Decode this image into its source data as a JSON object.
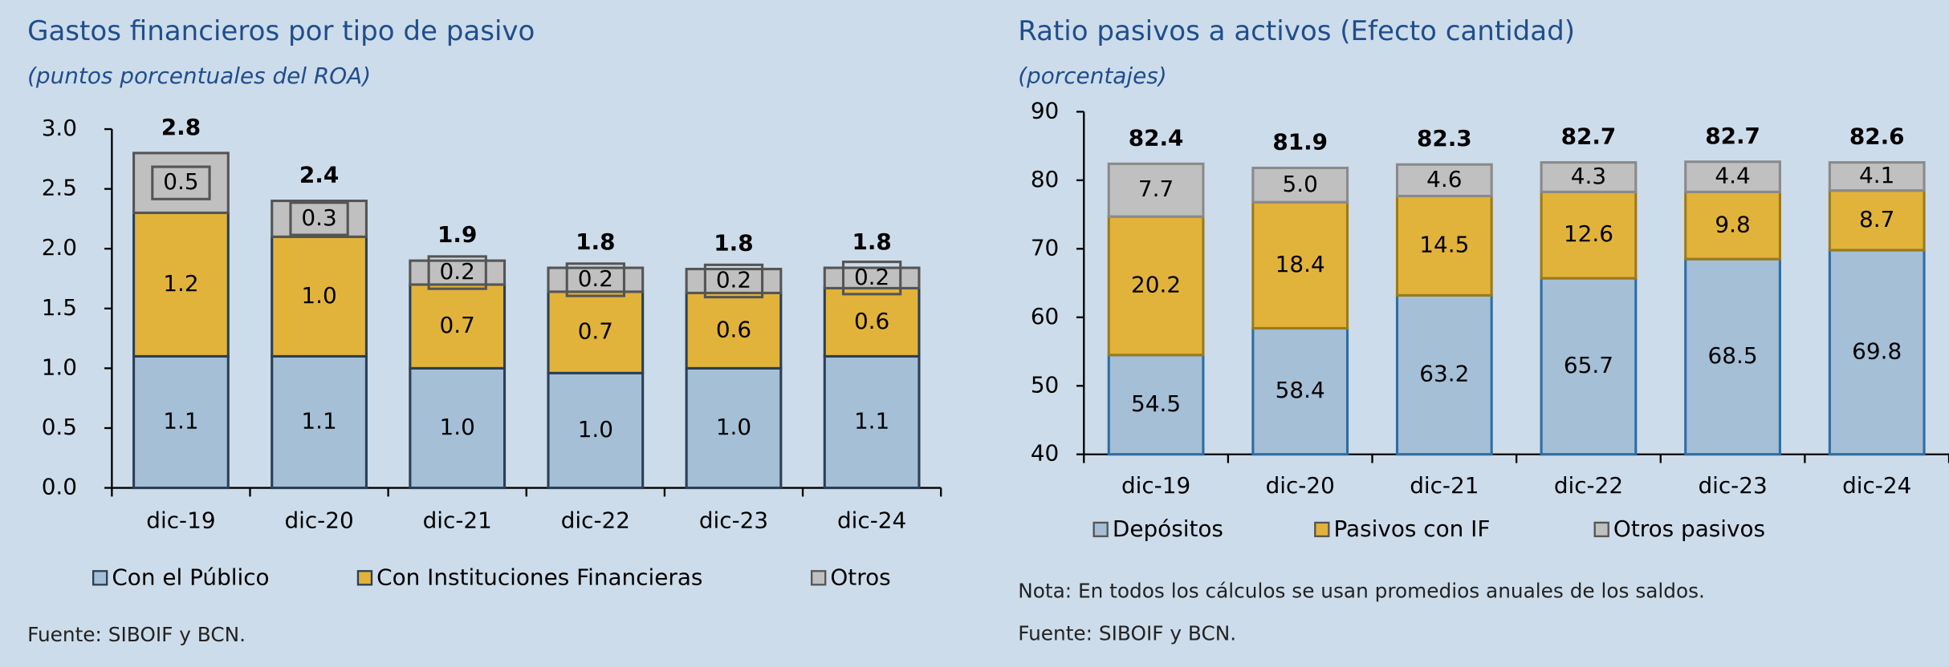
{
  "chart_data": [
    {
      "type": "bar",
      "title": "Gastos financieros por tipo de pasivo",
      "subtitle": "(puntos porcentuales del ROA)",
      "categories": [
        "dic-19",
        "dic-20",
        "dic-21",
        "dic-22",
        "dic-23",
        "dic-24"
      ],
      "series": [
        {
          "name": "Con el Público",
          "color": "#a4bfd6",
          "values": [
            1.1,
            1.1,
            1.0,
            0.96,
            1.0,
            1.1
          ],
          "value_labels": [
            "1.1",
            "1.1",
            "1.0",
            "1.0",
            "1.0",
            "1.1"
          ]
        },
        {
          "name": "Con Instituciones Financieras",
          "color": "#e2b33b",
          "values": [
            1.2,
            1.0,
            0.7,
            0.68,
            0.63,
            0.57
          ],
          "value_labels": [
            "1.2",
            "1.0",
            "0.7",
            "0.7",
            "0.6",
            "0.6"
          ]
        },
        {
          "name": "Otros",
          "color": "#c0c0c0",
          "values": [
            0.5,
            0.3,
            0.2,
            0.2,
            0.2,
            0.17
          ],
          "value_labels": [
            "0.5",
            "0.3",
            "0.2",
            "0.2",
            "0.2",
            "0.2"
          ]
        }
      ],
      "totals": [
        2.8,
        2.4,
        1.9,
        1.8,
        1.8,
        1.8
      ],
      "ylim": [
        0,
        3
      ],
      "yticks": [
        {
          "value": 0,
          "label": "0.0"
        },
        0.5,
        {
          "value": 1,
          "label": "1.0"
        },
        1.5,
        {
          "value": 2,
          "label": "2.0"
        },
        2.5,
        {
          "value": 3,
          "label": "3.0"
        }
      ],
      "source": "Fuente: SIBOIF y BCN."
    },
    {
      "type": "bar",
      "title": "Ratio pasivos a activos (Efecto cantidad)",
      "subtitle": "(porcentajes)",
      "categories": [
        "dic-19",
        "dic-20",
        "dic-21",
        "dic-22",
        "dic-23",
        "dic-24"
      ],
      "series": [
        {
          "name": "Depósitos",
          "color": "#a4bfd6",
          "values": [
            54.5,
            58.4,
            63.2,
            65.7,
            68.5,
            69.8
          ],
          "value_labels": [
            "54.5",
            "58.4",
            "63.2",
            "65.7",
            "68.5",
            "69.8"
          ]
        },
        {
          "name": "Pasivos con IF",
          "color": "#e2b33b",
          "values": [
            20.2,
            18.4,
            14.5,
            12.6,
            9.8,
            8.7
          ],
          "value_labels": [
            "20.2",
            "18.4",
            "14.5",
            "12.6",
            "9.8",
            "8.7"
          ]
        },
        {
          "name": "Otros pasivos",
          "color": "#c0c0c0",
          "values": [
            7.7,
            5.0,
            4.6,
            4.3,
            4.4,
            4.1
          ],
          "value_labels": [
            "7.7",
            "5.0",
            "4.6",
            "4.3",
            "4.4",
            "4.1"
          ]
        }
      ],
      "totals": [
        82.4,
        81.9,
        82.3,
        82.7,
        82.7,
        82.6
      ],
      "ylim": [
        40,
        90
      ],
      "yticks": [
        40,
        50,
        60,
        70,
        80,
        90
      ],
      "note": "Nota: En todos los cálculos se usan promedios anuales de los saldos.",
      "source": "Fuente: SIBOIF y BCN."
    }
  ]
}
